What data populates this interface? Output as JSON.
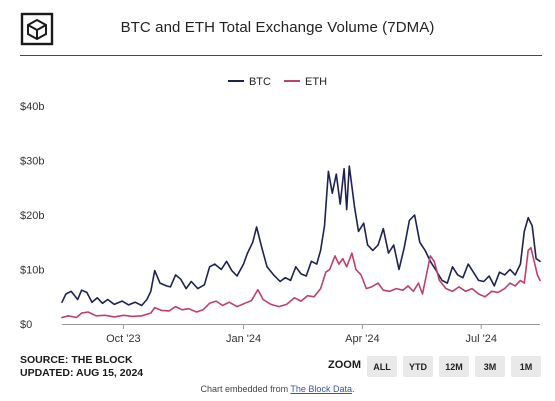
{
  "header": {
    "title": "BTC and ETH Total Exchange Volume (7DMA)"
  },
  "footer": {
    "source": "SOURCE: THE BLOCK",
    "updated": "UPDATED: AUG 15, 2024",
    "zoom_label": "ZOOM",
    "zoom_buttons": [
      "ALL",
      "YTD",
      "12M",
      "3M",
      "1M"
    ],
    "embed_prefix": "Chart embedded from",
    "embed_link": "The Block Data",
    "embed_suffix": "."
  },
  "colors": {
    "btc": "#1d2253",
    "eth": "#c0406a",
    "rule": "#3a3f8f"
  },
  "chart_data": {
    "type": "line",
    "title": "BTC and ETH Total Exchange Volume (7DMA)",
    "legend_position": "top-center",
    "grid": false,
    "x_domain": [
      "2023-08-15",
      "2024-08-15"
    ],
    "x_ticks": [
      {
        "label": "Oct '23",
        "date": "2023-10-01"
      },
      {
        "label": "Jan '24",
        "date": "2024-01-01"
      },
      {
        "label": "Apr '24",
        "date": "2024-04-01"
      },
      {
        "label": "Jul '24",
        "date": "2024-07-01"
      }
    ],
    "ylim": [
      0,
      40
    ],
    "y_ticks": [
      {
        "value": 0,
        "label": "$0"
      },
      {
        "value": 10,
        "label": "$10b"
      },
      {
        "value": 20,
        "label": "$20b"
      },
      {
        "value": 30,
        "label": "$30b"
      },
      {
        "value": 40,
        "label": "$40b"
      }
    ],
    "series": [
      {
        "name": "BTC",
        "points": [
          [
            "2023-08-15",
            4.0
          ],
          [
            "2023-08-18",
            5.5
          ],
          [
            "2023-08-22",
            6.0
          ],
          [
            "2023-08-27",
            4.5
          ],
          [
            "2023-08-30",
            6.2
          ],
          [
            "2023-09-03",
            5.8
          ],
          [
            "2023-09-07",
            4.0
          ],
          [
            "2023-09-11",
            4.8
          ],
          [
            "2023-09-15",
            3.8
          ],
          [
            "2023-09-19",
            4.5
          ],
          [
            "2023-09-24",
            3.6
          ],
          [
            "2023-09-30",
            4.2
          ],
          [
            "2023-10-05",
            3.5
          ],
          [
            "2023-10-10",
            4.0
          ],
          [
            "2023-10-15",
            3.4
          ],
          [
            "2023-10-19",
            4.5
          ],
          [
            "2023-10-22",
            6.0
          ],
          [
            "2023-10-25",
            9.8
          ],
          [
            "2023-10-29",
            7.5
          ],
          [
            "2023-11-03",
            7.0
          ],
          [
            "2023-11-06",
            6.8
          ],
          [
            "2023-11-10",
            9.0
          ],
          [
            "2023-11-14",
            8.2
          ],
          [
            "2023-11-18",
            6.5
          ],
          [
            "2023-11-22",
            7.8
          ],
          [
            "2023-11-27",
            6.5
          ],
          [
            "2023-12-02",
            7.2
          ],
          [
            "2023-12-06",
            10.5
          ],
          [
            "2023-12-10",
            11.0
          ],
          [
            "2023-12-15",
            10.0
          ],
          [
            "2023-12-19",
            11.5
          ],
          [
            "2023-12-23",
            9.8
          ],
          [
            "2023-12-27",
            8.8
          ],
          [
            "2024-01-01",
            11.0
          ],
          [
            "2024-01-04",
            13.0
          ],
          [
            "2024-01-08",
            15.0
          ],
          [
            "2024-01-11",
            17.8
          ],
          [
            "2024-01-15",
            14.0
          ],
          [
            "2024-01-19",
            10.5
          ],
          [
            "2024-01-24",
            9.0
          ],
          [
            "2024-01-29",
            7.8
          ],
          [
            "2024-02-02",
            8.5
          ],
          [
            "2024-02-06",
            8.0
          ],
          [
            "2024-02-10",
            10.5
          ],
          [
            "2024-02-14",
            9.2
          ],
          [
            "2024-02-18",
            8.8
          ],
          [
            "2024-02-22",
            11.5
          ],
          [
            "2024-02-26",
            11.0
          ],
          [
            "2024-02-29",
            13.5
          ],
          [
            "2024-03-03",
            18.0
          ],
          [
            "2024-03-06",
            28.0
          ],
          [
            "2024-03-09",
            24.0
          ],
          [
            "2024-03-12",
            27.5
          ],
          [
            "2024-03-15",
            22.0
          ],
          [
            "2024-03-18",
            28.5
          ],
          [
            "2024-03-20",
            21.0
          ],
          [
            "2024-03-22",
            29.0
          ],
          [
            "2024-03-26",
            21.5
          ],
          [
            "2024-03-29",
            17.0
          ],
          [
            "2024-04-02",
            18.5
          ],
          [
            "2024-04-05",
            14.5
          ],
          [
            "2024-04-09",
            13.5
          ],
          [
            "2024-04-13",
            14.5
          ],
          [
            "2024-04-17",
            17.5
          ],
          [
            "2024-04-21",
            13.0
          ],
          [
            "2024-04-25",
            14.5
          ],
          [
            "2024-04-29",
            10.0
          ],
          [
            "2024-05-03",
            14.0
          ],
          [
            "2024-05-07",
            19.0
          ],
          [
            "2024-05-11",
            20.0
          ],
          [
            "2024-05-15",
            15.0
          ],
          [
            "2024-05-19",
            13.5
          ],
          [
            "2024-05-23",
            11.5
          ],
          [
            "2024-05-27",
            10.0
          ],
          [
            "2024-06-01",
            8.0
          ],
          [
            "2024-06-05",
            7.5
          ],
          [
            "2024-06-09",
            10.5
          ],
          [
            "2024-06-13",
            9.0
          ],
          [
            "2024-06-17",
            8.5
          ],
          [
            "2024-06-21",
            11.0
          ],
          [
            "2024-06-25",
            9.5
          ],
          [
            "2024-06-29",
            8.0
          ],
          [
            "2024-07-03",
            7.8
          ],
          [
            "2024-07-07",
            8.8
          ],
          [
            "2024-07-11",
            7.0
          ],
          [
            "2024-07-15",
            9.5
          ],
          [
            "2024-07-19",
            9.0
          ],
          [
            "2024-07-23",
            10.0
          ],
          [
            "2024-07-27",
            9.0
          ],
          [
            "2024-07-31",
            11.0
          ],
          [
            "2024-08-03",
            17.0
          ],
          [
            "2024-08-06",
            19.5
          ],
          [
            "2024-08-09",
            18.0
          ],
          [
            "2024-08-12",
            12.0
          ],
          [
            "2024-08-15",
            11.5
          ]
        ]
      },
      {
        "name": "ETH",
        "points": [
          [
            "2023-08-15",
            1.2
          ],
          [
            "2023-08-20",
            1.5
          ],
          [
            "2023-08-26",
            1.2
          ],
          [
            "2023-08-30",
            2.0
          ],
          [
            "2023-09-04",
            2.2
          ],
          [
            "2023-09-10",
            1.5
          ],
          [
            "2023-09-17",
            1.6
          ],
          [
            "2023-09-24",
            1.3
          ],
          [
            "2023-10-01",
            1.6
          ],
          [
            "2023-10-08",
            1.4
          ],
          [
            "2023-10-15",
            1.5
          ],
          [
            "2023-10-22",
            2.0
          ],
          [
            "2023-10-25",
            3.0
          ],
          [
            "2023-10-30",
            2.5
          ],
          [
            "2023-11-05",
            2.4
          ],
          [
            "2023-11-10",
            3.2
          ],
          [
            "2023-11-15",
            2.6
          ],
          [
            "2023-11-20",
            2.8
          ],
          [
            "2023-11-26",
            2.2
          ],
          [
            "2023-12-01",
            2.6
          ],
          [
            "2023-12-06",
            3.8
          ],
          [
            "2023-12-11",
            4.2
          ],
          [
            "2023-12-16",
            3.4
          ],
          [
            "2023-12-21",
            4.0
          ],
          [
            "2023-12-27",
            3.2
          ],
          [
            "2024-01-02",
            3.8
          ],
          [
            "2024-01-07",
            4.3
          ],
          [
            "2024-01-12",
            6.3
          ],
          [
            "2024-01-16",
            4.5
          ],
          [
            "2024-01-22",
            3.6
          ],
          [
            "2024-01-28",
            3.2
          ],
          [
            "2024-02-03",
            3.6
          ],
          [
            "2024-02-09",
            4.8
          ],
          [
            "2024-02-14",
            4.2
          ],
          [
            "2024-02-19",
            5.2
          ],
          [
            "2024-02-24",
            5.0
          ],
          [
            "2024-02-29",
            6.5
          ],
          [
            "2024-03-04",
            9.5
          ],
          [
            "2024-03-07",
            10.0
          ],
          [
            "2024-03-11",
            12.5
          ],
          [
            "2024-03-14",
            11.0
          ],
          [
            "2024-03-17",
            12.0
          ],
          [
            "2024-03-20",
            10.5
          ],
          [
            "2024-03-24",
            13.0
          ],
          [
            "2024-03-27",
            10.0
          ],
          [
            "2024-03-31",
            9.0
          ],
          [
            "2024-04-04",
            6.5
          ],
          [
            "2024-04-08",
            6.8
          ],
          [
            "2024-04-13",
            7.5
          ],
          [
            "2024-04-17",
            6.2
          ],
          [
            "2024-04-22",
            6.0
          ],
          [
            "2024-04-27",
            6.5
          ],
          [
            "2024-05-02",
            6.2
          ],
          [
            "2024-05-06",
            7.0
          ],
          [
            "2024-05-10",
            6.0
          ],
          [
            "2024-05-14",
            7.5
          ],
          [
            "2024-05-17",
            5.5
          ],
          [
            "2024-05-20",
            9.0
          ],
          [
            "2024-05-23",
            12.5
          ],
          [
            "2024-05-26",
            11.5
          ],
          [
            "2024-05-30",
            8.0
          ],
          [
            "2024-06-04",
            6.5
          ],
          [
            "2024-06-09",
            6.0
          ],
          [
            "2024-06-14",
            6.8
          ],
          [
            "2024-06-19",
            6.0
          ],
          [
            "2024-06-24",
            6.5
          ],
          [
            "2024-06-29",
            5.5
          ],
          [
            "2024-07-04",
            5.0
          ],
          [
            "2024-07-09",
            6.0
          ],
          [
            "2024-07-14",
            5.8
          ],
          [
            "2024-07-19",
            6.5
          ],
          [
            "2024-07-23",
            7.5
          ],
          [
            "2024-07-27",
            7.0
          ],
          [
            "2024-07-31",
            8.0
          ],
          [
            "2024-08-03",
            7.5
          ],
          [
            "2024-08-06",
            13.5
          ],
          [
            "2024-08-08",
            14.0
          ],
          [
            "2024-08-10",
            12.0
          ],
          [
            "2024-08-13",
            9.0
          ],
          [
            "2024-08-15",
            8.0
          ]
        ]
      }
    ]
  }
}
